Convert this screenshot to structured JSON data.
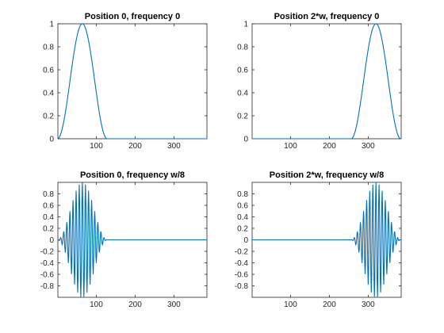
{
  "figure": {
    "background": "#ffffff",
    "line_color": "#0072bd"
  },
  "chart_data": [
    {
      "type": "line",
      "title": "Position 0, frequency 0",
      "xlabel": "",
      "ylabel": "",
      "xlim": [
        1,
        385
      ],
      "ylim": [
        0,
        1
      ],
      "xticks": [
        100,
        200,
        300
      ],
      "yticks": [
        0,
        0.2,
        0.4,
        0.6,
        0.8,
        1
      ],
      "ytick_labels": [
        "0",
        "0.2",
        "0.4",
        "0.6",
        "0.8",
        "1"
      ],
      "series": [
        {
          "position": 0,
          "half_width": 64,
          "frequency_per_sample": 0,
          "peak": 1,
          "x_range": [
            1,
            385
          ]
        }
      ]
    },
    {
      "type": "line",
      "title": "Position 2*w, frequency 0",
      "xlabel": "",
      "ylabel": "",
      "xlim": [
        1,
        385
      ],
      "ylim": [
        0,
        1
      ],
      "xticks": [
        100,
        200,
        300
      ],
      "yticks": [
        0,
        0.2,
        0.4,
        0.6,
        0.8,
        1
      ],
      "ytick_labels": [
        "0",
        "0.2",
        "0.4",
        "0.6",
        "0.8",
        "1"
      ],
      "series": [
        {
          "position": 256,
          "half_width": 64,
          "frequency_per_sample": 0,
          "peak": 1,
          "x_range": [
            1,
            385
          ]
        }
      ]
    },
    {
      "type": "line",
      "title": "Position 0, frequency w/8",
      "xlabel": "",
      "ylabel": "",
      "xlim": [
        1,
        385
      ],
      "ylim": [
        -1,
        1
      ],
      "xticks": [
        100,
        200,
        300
      ],
      "yticks": [
        -0.8,
        -0.6,
        -0.4,
        -0.2,
        0,
        0.2,
        0.4,
        0.6,
        0.8
      ],
      "ytick_labels": [
        "-0.8",
        "-0.6",
        "-0.4",
        "-0.2",
        "0",
        "0.2",
        "0.4",
        "0.6",
        "0.8"
      ],
      "series": [
        {
          "position": 0,
          "half_width": 64,
          "frequency_per_sample": 0.125,
          "peak": 1,
          "x_range": [
            1,
            385
          ]
        }
      ]
    },
    {
      "type": "line",
      "title": "Position 2*w, frequency w/8",
      "xlabel": "",
      "ylabel": "",
      "xlim": [
        1,
        385
      ],
      "ylim": [
        -1,
        1
      ],
      "xticks": [
        100,
        200,
        300
      ],
      "yticks": [
        -0.8,
        -0.6,
        -0.4,
        -0.2,
        0,
        0.2,
        0.4,
        0.6,
        0.8
      ],
      "ytick_labels": [
        "-0.8",
        "-0.6",
        "-0.4",
        "-0.2",
        "0",
        "0.2",
        "0.4",
        "0.6",
        "0.8"
      ],
      "series": [
        {
          "position": 256,
          "half_width": 64,
          "frequency_per_sample": 0.125,
          "peak": 1,
          "x_range": [
            1,
            385
          ]
        }
      ]
    }
  ]
}
